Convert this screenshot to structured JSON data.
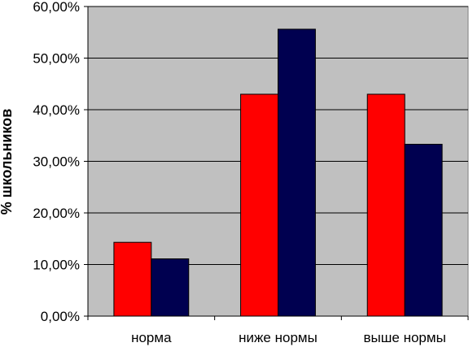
{
  "chart_data": {
    "type": "bar",
    "title": "",
    "xlabel": "",
    "ylabel": "% школьников",
    "categories": [
      "норма",
      "ниже нормы",
      "выше нормы"
    ],
    "series": [
      {
        "values": [
          14.3,
          43.0,
          43.0
        ]
      },
      {
        "values": [
          11.1,
          55.6,
          33.3
        ]
      }
    ],
    "ylim": [
      0,
      60
    ],
    "y_ticks": [
      "0,00%",
      "10,00%",
      "20,00%",
      "30,00%",
      "40,00%",
      "50,00%",
      "60,00%"
    ],
    "grid": true,
    "legend": "none",
    "colors": {
      "series": [
        "#ff0000",
        "#000050"
      ],
      "plot_background": "#c0c0c0",
      "gridline": "#000000",
      "bar_border": "#000000"
    }
  }
}
